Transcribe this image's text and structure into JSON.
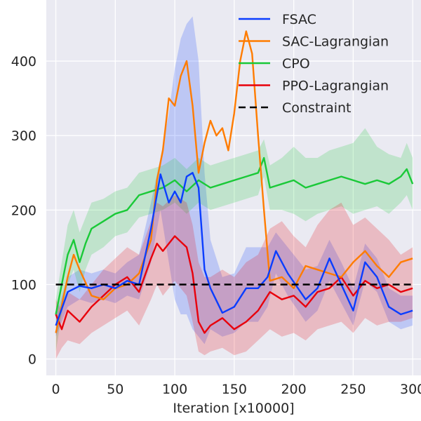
{
  "chart_data": {
    "type": "line",
    "title": "",
    "xlabel": "Iteration [x10000]",
    "ylabel": "",
    "xlim": [
      -8,
      307
    ],
    "ylim": [
      -22,
      482
    ],
    "xticks": [
      0,
      50,
      100,
      150,
      200,
      250,
      300
    ],
    "yticks": [
      0,
      100,
      200,
      300,
      400
    ],
    "grid": true,
    "legend_position": "top-right",
    "colors": {
      "background": "#eaeaf2",
      "grid": "#ffffff",
      "text": "#262626"
    },
    "series": [
      {
        "name": "FSAC",
        "color": "#0a3dff",
        "x": [
          0,
          10,
          20,
          30,
          40,
          50,
          60,
          70,
          80,
          88,
          95,
          100,
          105,
          110,
          115,
          120,
          125,
          130,
          140,
          150,
          160,
          170,
          178,
          185,
          195,
          210,
          220,
          230,
          240,
          250,
          260,
          270,
          280,
          290,
          300
        ],
        "y": [
          45,
          90,
          98,
          95,
          100,
          95,
          105,
          100,
          175,
          248,
          210,
          225,
          210,
          245,
          250,
          230,
          120,
          95,
          62,
          70,
          95,
          95,
          110,
          145,
          115,
          80,
          95,
          135,
          100,
          65,
          130,
          110,
          70,
          60,
          65
        ],
        "band_upper": [
          60,
          110,
          120,
          115,
          120,
          115,
          130,
          140,
          210,
          270,
          330,
          390,
          430,
          450,
          460,
          400,
          250,
          160,
          110,
          115,
          150,
          150,
          150,
          170,
          150,
          120,
          125,
          160,
          130,
          95,
          155,
          135,
          95,
          85,
          85
        ],
        "band_lower": [
          30,
          70,
          80,
          75,
          80,
          75,
          85,
          80,
          130,
          200,
          130,
          80,
          60,
          60,
          40,
          30,
          20,
          40,
          30,
          35,
          50,
          50,
          70,
          115,
          85,
          50,
          65,
          105,
          75,
          45,
          105,
          90,
          50,
          40,
          45
        ]
      },
      {
        "name": "SAC-Lagrangian",
        "color": "#ff7c00",
        "x": [
          0,
          10,
          15,
          20,
          30,
          40,
          50,
          60,
          70,
          80,
          85,
          90,
          95,
          100,
          105,
          110,
          115,
          120,
          125,
          130,
          135,
          140,
          145,
          150,
          155,
          160,
          165,
          170,
          175,
          180,
          190,
          200,
          210,
          220,
          230,
          240,
          250,
          260,
          270,
          280,
          290,
          300
        ],
        "y": [
          35,
          110,
          140,
          120,
          85,
          80,
          95,
          100,
          115,
          160,
          240,
          280,
          350,
          340,
          380,
          400,
          340,
          250,
          290,
          320,
          300,
          310,
          280,
          330,
          400,
          440,
          410,
          300,
          200,
          105,
          110,
          95,
          125,
          120,
          115,
          110,
          130,
          145,
          125,
          110,
          130,
          135
        ],
        "band_upper": [],
        "band_lower": []
      },
      {
        "name": "CPO",
        "color": "#1ac938",
        "x": [
          0,
          5,
          10,
          15,
          20,
          25,
          30,
          40,
          50,
          60,
          70,
          80,
          90,
          100,
          110,
          120,
          130,
          140,
          150,
          160,
          170,
          175,
          180,
          190,
          200,
          210,
          220,
          230,
          240,
          250,
          260,
          270,
          280,
          290,
          295,
          300
        ],
        "y": [
          60,
          100,
          140,
          160,
          130,
          155,
          175,
          185,
          195,
          200,
          220,
          225,
          230,
          240,
          225,
          240,
          230,
          235,
          240,
          245,
          250,
          270,
          230,
          235,
          240,
          230,
          235,
          240,
          245,
          240,
          235,
          240,
          235,
          245,
          255,
          235
        ],
        "band_upper": [
          80,
          130,
          180,
          200,
          170,
          190,
          210,
          215,
          225,
          230,
          250,
          255,
          260,
          270,
          255,
          270,
          260,
          265,
          270,
          275,
          280,
          295,
          260,
          270,
          285,
          270,
          270,
          280,
          285,
          290,
          310,
          285,
          275,
          270,
          290,
          270
        ],
        "band_lower": [
          10,
          60,
          100,
          120,
          90,
          120,
          140,
          150,
          165,
          170,
          190,
          195,
          200,
          210,
          195,
          210,
          200,
          205,
          210,
          215,
          220,
          245,
          200,
          200,
          195,
          185,
          195,
          200,
          205,
          195,
          200,
          205,
          195,
          210,
          220,
          200
        ]
      },
      {
        "name": "PPO-Lagrangian",
        "color": "#e8000b",
        "x": [
          0,
          5,
          10,
          20,
          30,
          40,
          50,
          60,
          70,
          80,
          85,
          90,
          100,
          110,
          115,
          120,
          125,
          130,
          140,
          150,
          160,
          170,
          180,
          190,
          200,
          210,
          220,
          230,
          240,
          250,
          260,
          270,
          280,
          290,
          300
        ],
        "y": [
          60,
          40,
          65,
          50,
          70,
          85,
          100,
          110,
          90,
          135,
          155,
          145,
          165,
          150,
          115,
          50,
          35,
          45,
          55,
          40,
          50,
          65,
          90,
          80,
          85,
          70,
          90,
          95,
          110,
          85,
          105,
          95,
          100,
          90,
          95
        ],
        "band_upper": [
          80,
          65,
          90,
          80,
          100,
          120,
          135,
          150,
          140,
          185,
          210,
          205,
          220,
          210,
          180,
          130,
          110,
          110,
          120,
          110,
          130,
          140,
          175,
          185,
          165,
          150,
          180,
          200,
          210,
          180,
          190,
          175,
          160,
          140,
          150
        ],
        "band_lower": [
          0,
          15,
          25,
          20,
          35,
          45,
          55,
          65,
          45,
          80,
          100,
          85,
          105,
          85,
          50,
          10,
          5,
          10,
          15,
          5,
          10,
          25,
          40,
          30,
          35,
          25,
          40,
          45,
          50,
          35,
          55,
          45,
          50,
          50,
          55
        ]
      },
      {
        "name": "Constraint",
        "color": "#000000",
        "dash": true,
        "x": [
          0,
          300
        ],
        "y": [
          100,
          100
        ],
        "band_upper": [],
        "band_lower": []
      }
    ]
  }
}
